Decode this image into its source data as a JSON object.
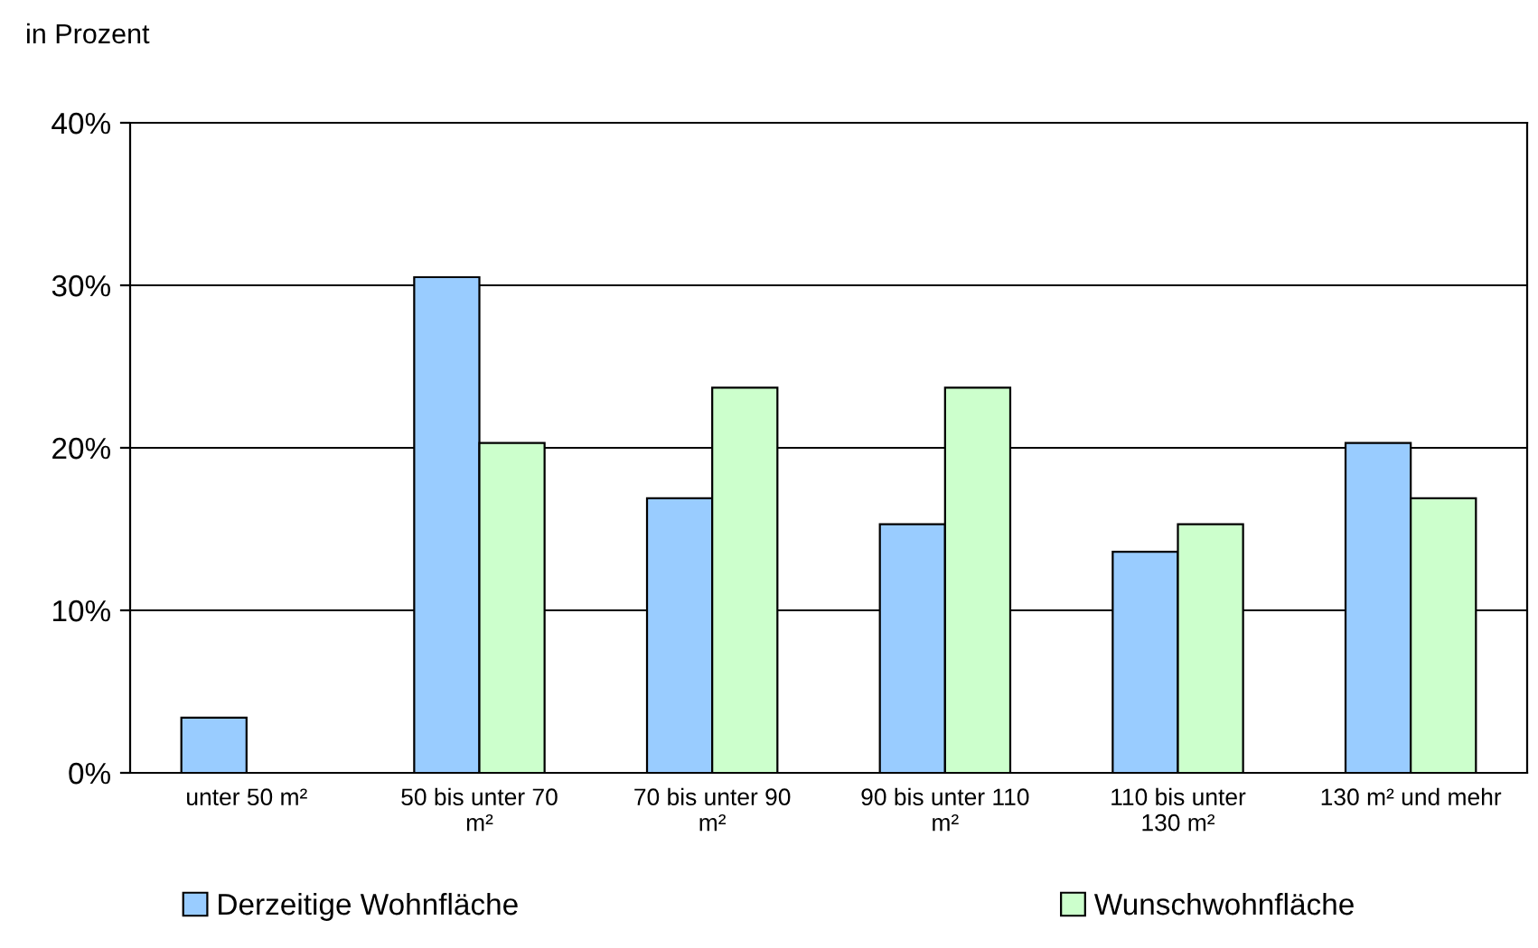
{
  "chart_data": {
    "type": "bar",
    "ylabel": "in Prozent",
    "categories": [
      "unter 50 m²",
      "50 bis unter 70\nm²",
      "70 bis unter 90\nm²",
      "90 bis unter 110\nm²",
      "110 bis unter\n130 m²",
      "130 m² und mehr"
    ],
    "series": [
      {
        "name": "Derzeitige Wohnfläche",
        "color": "#99ccff",
        "values": [
          3.4,
          30.5,
          16.9,
          15.3,
          13.6,
          20.3
        ]
      },
      {
        "name": "Wunschwohnfläche",
        "color": "#ccffcc",
        "values": [
          null,
          20.3,
          23.7,
          23.7,
          15.3,
          16.9
        ]
      }
    ],
    "ylim": [
      0,
      40
    ],
    "yticks": [
      {
        "value": 0,
        "label": "0%"
      },
      {
        "value": 10,
        "label": "10%"
      },
      {
        "value": 20,
        "label": "20%"
      },
      {
        "value": 30,
        "label": "30%"
      },
      {
        "value": 40,
        "label": "40%"
      }
    ],
    "grid": "y",
    "legend": "bottom"
  }
}
